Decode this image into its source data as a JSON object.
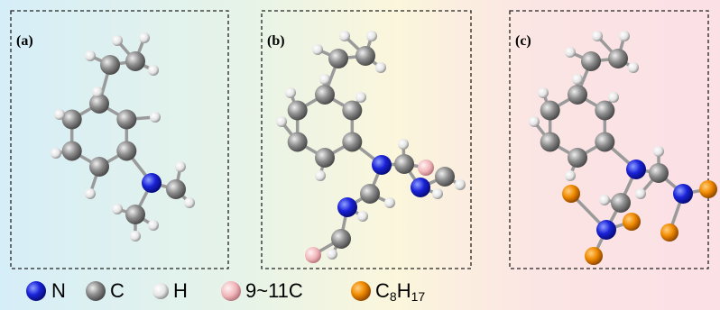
{
  "panels": [
    {
      "label": "(a)"
    },
    {
      "label": "(b)"
    },
    {
      "label": "(c)"
    }
  ],
  "legend": [
    {
      "label": "N"
    },
    {
      "label": "C"
    },
    {
      "label": "H"
    },
    {
      "label": "9~11C"
    },
    {
      "label_parts": [
        "C",
        "8",
        "H",
        "17"
      ]
    }
  ]
}
